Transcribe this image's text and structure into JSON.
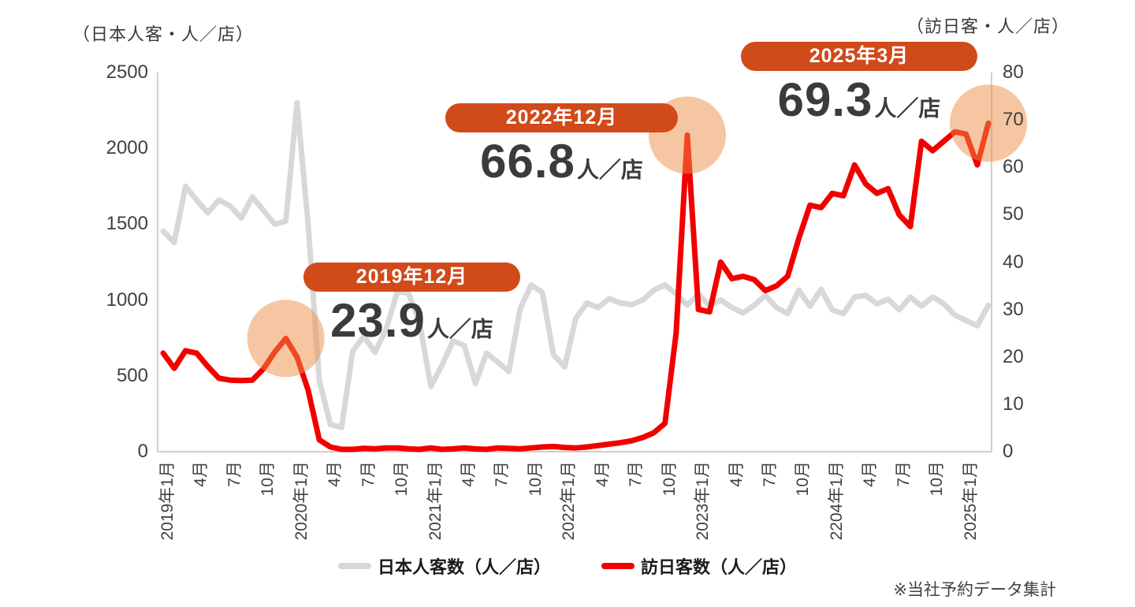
{
  "titles": {
    "left_axis": "（日本人客・人／店）",
    "right_axis": "（訪日客・人／店）"
  },
  "footnote": "※当社予約データ集計",
  "colors": {
    "gray_line": "#D8D8D8",
    "red_line": "#F20000",
    "badge": "#D14A1A",
    "highlight": "#ED8D45",
    "axis": "#BFBFBF",
    "number_text": "#3B3B3B"
  },
  "legend": {
    "items": [
      {
        "label": "日本人客数（人／店）",
        "color": "#D8D8D8"
      },
      {
        "label": "訪日客数（人／店）",
        "color": "#F20000"
      }
    ]
  },
  "chart_data": {
    "type": "line",
    "title": "",
    "x_tick_labels": [
      "2019年1月",
      "4月",
      "7月",
      "10月",
      "2020年1月",
      "4月",
      "7月",
      "10月",
      "2021年1月",
      "4月",
      "7月",
      "10月",
      "2022年1月",
      "4月",
      "7月",
      "10月",
      "2023年1月",
      "4月",
      "7月",
      "10月",
      "2204年1月",
      "4月",
      "7月",
      "10月",
      "2025年1月"
    ],
    "points_per_tick": 3,
    "left_axis": {
      "label": "（日本人客・人／店）",
      "min": 0,
      "max": 2500,
      "ticks": [
        2500,
        2000,
        1500,
        1000,
        500,
        0
      ]
    },
    "right_axis": {
      "label": "（訪日客・人／店）",
      "min": 0,
      "max": 80,
      "ticks": [
        80,
        70,
        60,
        50,
        40,
        30,
        20,
        10,
        0
      ]
    },
    "grid": false,
    "legend_position": "bottom",
    "series": [
      {
        "name": "日本人客数（人／店）",
        "axis": "left",
        "color": "#D8D8D8",
        "values": [
          1455,
          1380,
          1750,
          1660,
          1575,
          1660,
          1620,
          1540,
          1680,
          1590,
          1500,
          1520,
          2300,
          1500,
          470,
          180,
          160,
          665,
          760,
          655,
          810,
          1055,
          1045,
          850,
          430,
          570,
          730,
          700,
          450,
          650,
          590,
          530,
          940,
          1100,
          1050,
          640,
          560,
          880,
          980,
          950,
          1010,
          980,
          970,
          1000,
          1065,
          1100,
          1040,
          965,
          1040,
          960,
          1000,
          950,
          915,
          965,
          1030,
          950,
          910,
          1065,
          960,
          1070,
          935,
          910,
          1020,
          1030,
          975,
          1005,
          935,
          1020,
          960,
          1020,
          975,
          900,
          865,
          830,
          965
        ]
      },
      {
        "name": "訪日客数（人／店）",
        "axis": "right",
        "color": "#F20000",
        "values": [
          20.8,
          17.6,
          21.3,
          20.8,
          18,
          15.5,
          15.1,
          15,
          15.1,
          17.5,
          21,
          23.9,
          20,
          13,
          2.5,
          1,
          0.5,
          0.5,
          0.7,
          0.6,
          0.8,
          0.8,
          0.6,
          0.5,
          0.8,
          0.5,
          0.6,
          0.8,
          0.6,
          0.5,
          0.8,
          0.7,
          0.6,
          0.8,
          1.0,
          1.1,
          0.9,
          0.8,
          1.0,
          1.3,
          1.6,
          1.9,
          2.3,
          3.0,
          4.0,
          6.0,
          25,
          66.8,
          30,
          29.5,
          40,
          36.5,
          37,
          36.3,
          34,
          35,
          37,
          45,
          52,
          51.5,
          54.5,
          54,
          60.5,
          56.5,
          54.5,
          55.5,
          50,
          47.5,
          65.5,
          63.5,
          65.5,
          67.5,
          67,
          60.5,
          69.3
        ]
      }
    ],
    "annotations": [
      {
        "label": "2019年12月",
        "value": "23.9",
        "unit": "人／店",
        "point_index": 11
      },
      {
        "label": "2022年12月",
        "value": "66.8",
        "unit": "人／店",
        "point_index": 47
      },
      {
        "label": "2025年3月",
        "value": "69.3",
        "unit": "人／店",
        "point_index": 74
      }
    ]
  }
}
